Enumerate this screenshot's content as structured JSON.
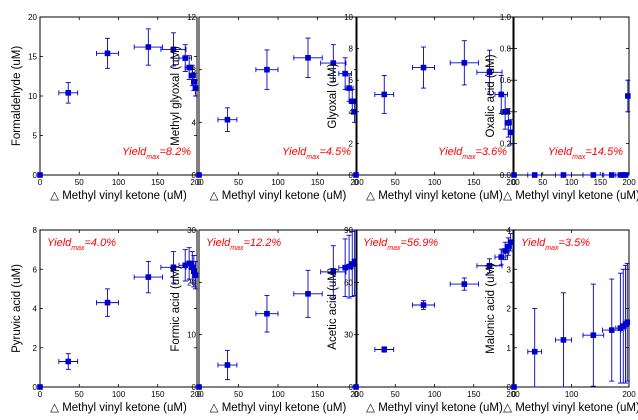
{
  "chart_data": [
    {
      "type": "scatter",
      "ylabel": "Formaldehyde (uM)",
      "xlabel": "△ Methyl vinyl ketone (uM)",
      "xlim": [
        0,
        200
      ],
      "ylim": [
        0,
        20
      ],
      "xticks": [
        "0",
        "50",
        "100",
        "150",
        "200"
      ],
      "yticks": [
        "0",
        "5",
        "10",
        "15",
        "20"
      ],
      "annotation": {
        "prefix": "Yield",
        "sub": "max",
        "value": "=8.2%"
      },
      "annotation_pos": "bottom-right",
      "series": [
        {
          "x": [
            0,
            36,
            86,
            138,
            170,
            185,
            190,
            194,
            196,
            198
          ],
          "y": [
            0,
            10.4,
            15.4,
            16.2,
            15.9,
            14.8,
            13.6,
            12.6,
            11.8,
            11.0
          ],
          "xerr": [
            0,
            12,
            14,
            18,
            16,
            8,
            5,
            4,
            3,
            2
          ],
          "yerr": [
            0,
            1.3,
            1.9,
            2.3,
            2.1,
            1.7,
            1.5,
            1.3,
            1.1,
            1.0
          ]
        }
      ]
    },
    {
      "type": "scatter",
      "ylabel": "Methyl glyoxal (uM)",
      "xlabel": "△ Methyl vinyl ketone (uM)",
      "xlim": [
        0,
        200
      ],
      "ylim": [
        0,
        12
      ],
      "xticks": [
        "0",
        "50",
        "100",
        "150",
        "200"
      ],
      "yticks": [
        "0",
        "4",
        "8",
        "12"
      ],
      "annotation": {
        "prefix": "Yield",
        "sub": "max",
        "value": "=4.5%"
      },
      "annotation_pos": "bottom-right",
      "series": [
        {
          "x": [
            0,
            36,
            86,
            138,
            170,
            185,
            190,
            194,
            197
          ],
          "y": [
            0,
            4.2,
            8.0,
            8.9,
            8.5,
            7.7,
            6.6,
            5.6,
            4.8
          ],
          "xerr": [
            0,
            12,
            14,
            18,
            16,
            8,
            5,
            4,
            2
          ],
          "yerr": [
            0,
            0.9,
            1.5,
            1.5,
            1.4,
            1.2,
            1.0,
            0.9,
            0.8
          ]
        }
      ]
    },
    {
      "type": "scatter",
      "ylabel": "Glyoxal (uM)",
      "xlabel": "△ Methyl vinyl ketone (uM)",
      "xlim": [
        0,
        200
      ],
      "ylim": [
        0,
        10
      ],
      "xticks": [
        "0",
        "50",
        "100",
        "150",
        "200"
      ],
      "yticks": [
        "0",
        "2",
        "4",
        "6",
        "8",
        "10"
      ],
      "annotation": {
        "prefix": "Yield",
        "sub": "max",
        "value": "=3.6%"
      },
      "annotation_pos": "bottom-right",
      "series": [
        {
          "x": [
            0,
            36,
            86,
            138,
            170,
            185,
            190,
            194,
            197
          ],
          "y": [
            0,
            5.1,
            6.8,
            7.1,
            6.5,
            5.1,
            4.0,
            3.3,
            2.7
          ],
          "xerr": [
            0,
            12,
            14,
            18,
            16,
            8,
            5,
            4,
            2
          ],
          "yerr": [
            0,
            1.2,
            1.3,
            1.4,
            1.4,
            1.2,
            1.1,
            0.9,
            0.8
          ]
        }
      ]
    },
    {
      "type": "scatter",
      "ylabel": "Oxalic acid (uM)",
      "xlabel": "△ Methyl vinyl ketone (uM)",
      "xlim": [
        0,
        200
      ],
      "ylim": [
        0,
        1.0
      ],
      "xticks": [
        "0",
        "50",
        "100",
        "150",
        "200"
      ],
      "yticks": [
        "0.0",
        "0.2",
        "0.4",
        "0.6",
        "0.8",
        "1.0"
      ],
      "annotation": {
        "prefix": "Yield",
        "sub": "max",
        "value": "=14.5%"
      },
      "annotation_pos": "bottom-right",
      "series": [
        {
          "x": [
            0,
            36,
            86,
            138,
            170,
            185,
            190,
            194,
            198
          ],
          "y": [
            0,
            0,
            0,
            0,
            0,
            0,
            0,
            0,
            0.5
          ],
          "xerr": [
            0,
            12,
            14,
            18,
            16,
            8,
            5,
            4,
            2
          ],
          "yerr": [
            0,
            0,
            0,
            0,
            0,
            0,
            0,
            0,
            0.1
          ]
        }
      ]
    },
    {
      "type": "scatter",
      "ylabel": "Pyruvic acid (uM)",
      "xlabel": "△ Methyl vinyl ketone (uM)",
      "xlim": [
        0,
        200
      ],
      "ylim": [
        0,
        8
      ],
      "xticks": [
        "0",
        "50",
        "100",
        "150",
        "200"
      ],
      "yticks": [
        "0",
        "2",
        "4",
        "6",
        "8"
      ],
      "annotation": {
        "prefix": "Yield",
        "sub": "max",
        "value": "=4.0%"
      },
      "annotation_pos": "top-left",
      "series": [
        {
          "x": [
            0,
            36,
            86,
            138,
            170,
            185,
            190,
            194,
            196,
            198
          ],
          "y": [
            0,
            1.3,
            4.3,
            5.6,
            6.1,
            6.2,
            6.3,
            6.1,
            5.9,
            5.7
          ],
          "xerr": [
            0,
            12,
            14,
            18,
            16,
            8,
            5,
            4,
            3,
            2
          ],
          "yerr": [
            0,
            0.4,
            0.7,
            0.8,
            0.8,
            0.8,
            0.8,
            0.8,
            0.8,
            0.7
          ]
        }
      ]
    },
    {
      "type": "scatter",
      "ylabel": "Formic acid (uM)",
      "xlabel": "△ Methyl vinyl ketone (uM)",
      "xlim": [
        0,
        200
      ],
      "ylim": [
        0,
        30
      ],
      "xticks": [
        "0",
        "50",
        "100",
        "150",
        "200"
      ],
      "yticks": [
        "0",
        "10",
        "20",
        "30"
      ],
      "annotation": {
        "prefix": "Yield",
        "sub": "max",
        "value": "=12.2%"
      },
      "annotation_pos": "top-left",
      "series": [
        {
          "x": [
            0,
            36,
            86,
            138,
            170,
            185,
            190,
            194,
            197
          ],
          "y": [
            0,
            4.2,
            14.0,
            17.8,
            22.0,
            22.8,
            23.0,
            23.5,
            24.0
          ],
          "xerr": [
            0,
            12,
            14,
            18,
            16,
            8,
            5,
            4,
            2
          ],
          "yerr": [
            0,
            2.8,
            3.5,
            4.5,
            5.0,
            5.5,
            6.0,
            6.2,
            6.5
          ]
        }
      ]
    },
    {
      "type": "scatter",
      "ylabel": "Acetic acid (uM)",
      "xlabel": "△ Methyl vinyl ketone (uM)",
      "xlim": [
        0,
        200
      ],
      "ylim": [
        0,
        90
      ],
      "xticks": [
        "0",
        "50",
        "100",
        "150",
        "200"
      ],
      "yticks": [
        "0",
        "30",
        "60",
        "90"
      ],
      "annotation": {
        "prefix": "Yield",
        "sub": "max",
        "value": "=56.9%"
      },
      "annotation_pos": "top-left",
      "series": [
        {
          "x": [
            0,
            36,
            86,
            138,
            170,
            185,
            190,
            194,
            197
          ],
          "y": [
            0,
            21.5,
            47.0,
            59.0,
            69.5,
            74.5,
            78.0,
            80.5,
            83.0
          ],
          "xerr": [
            0,
            12,
            14,
            18,
            16,
            8,
            5,
            4,
            2
          ],
          "yerr": [
            0,
            1.5,
            2.5,
            3.5,
            4.0,
            4.5,
            5.0,
            5.0,
            5.0
          ]
        }
      ]
    },
    {
      "type": "scatter",
      "ylabel": "Malonic acid (uM)",
      "xlabel": "△ Methyl vinyl ketone (uM)",
      "xlim": [
        0,
        200
      ],
      "ylim": [
        0,
        4
      ],
      "xticks": [
        "0",
        "100",
        "200"
      ],
      "yticks": [
        "0",
        "1",
        "2",
        "3",
        "4"
      ],
      "annotation": {
        "prefix": "Yield",
        "sub": "max",
        "value": "=3.5%"
      },
      "annotation_pos": "top-left",
      "series": [
        {
          "x": [
            0,
            36,
            86,
            138,
            170,
            185,
            190,
            194,
            197
          ],
          "y": [
            0,
            0.9,
            1.2,
            1.32,
            1.45,
            1.5,
            1.55,
            1.6,
            1.65
          ],
          "xerr": [
            0,
            12,
            14,
            18,
            16,
            8,
            5,
            4,
            2
          ],
          "yerr": [
            0,
            1.1,
            1.2,
            1.3,
            1.3,
            1.4,
            1.45,
            1.5,
            1.5
          ]
        }
      ]
    }
  ],
  "colors": {
    "marker": "#0000cc",
    "annotation": "#ff0000",
    "axis": "#000000"
  }
}
